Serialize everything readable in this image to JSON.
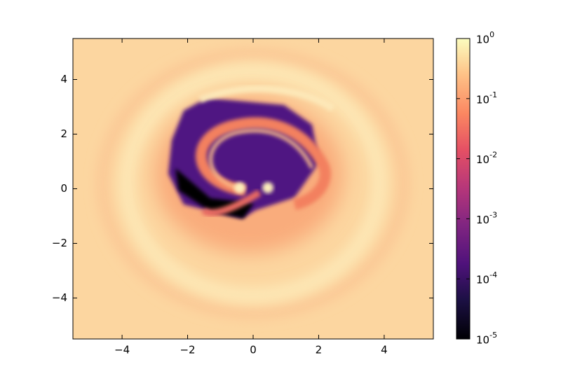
{
  "chart_data": {
    "type": "heatmap",
    "colormap": "magma",
    "xlim": [
      -5.5,
      5.5
    ],
    "ylim": [
      -5.5,
      5.5
    ],
    "xticks": [
      {
        "value": -4,
        "label": "−4"
      },
      {
        "value": -2,
        "label": "−2"
      },
      0,
      2,
      4
    ],
    "yticks": [
      {
        "value": -4,
        "label": "−4"
      },
      {
        "value": -2,
        "label": "−2"
      },
      0,
      2,
      4
    ],
    "colorbar": {
      "scale": "log",
      "lim": [
        1e-05,
        1
      ],
      "ticks": [
        {
          "value": 1e-05,
          "label": "10^-5"
        },
        {
          "value": 0.0001,
          "label": "10^-4"
        },
        {
          "value": 0.001,
          "label": "10^-3"
        },
        {
          "value": 0.01,
          "label": "10^-2"
        },
        {
          "value": 0.1,
          "label": "10^-1"
        },
        {
          "value": 1,
          "label": "10^0"
        }
      ]
    }
  }
}
